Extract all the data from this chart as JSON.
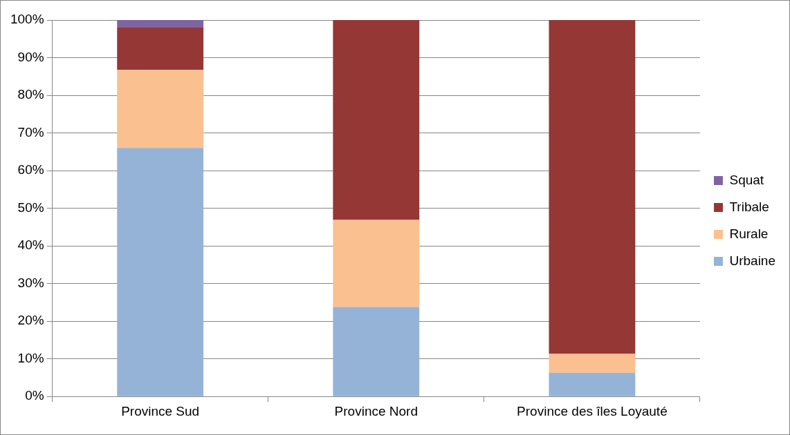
{
  "chart_data": {
    "type": "bar",
    "stacked": true,
    "categories": [
      "Province Sud",
      "Province Nord",
      "Province des îles Loyauté"
    ],
    "series": [
      {
        "name": "Urbaine",
        "color": "#95b3d7",
        "values": [
          66,
          23.8,
          6.3
        ]
      },
      {
        "name": "Rurale",
        "color": "#fac090",
        "values": [
          20.8,
          23.1,
          5
        ]
      },
      {
        "name": "Tribale",
        "color": "#953735",
        "values": [
          11.3,
          53.1,
          88.7
        ]
      },
      {
        "name": "Squat",
        "color": "#8064a2",
        "values": [
          1.9,
          0,
          0
        ]
      }
    ],
    "ylim": [
      0,
      100
    ],
    "yticks": [
      {
        "value": 0,
        "label": "0%"
      },
      {
        "value": 10,
        "label": "10%"
      },
      {
        "value": 20,
        "label": "20%"
      },
      {
        "value": 30,
        "label": "30%"
      },
      {
        "value": 40,
        "label": "40%"
      },
      {
        "value": 50,
        "label": "50%"
      },
      {
        "value": 60,
        "label": "60%"
      },
      {
        "value": 70,
        "label": "70%"
      },
      {
        "value": 80,
        "label": "80%"
      },
      {
        "value": 90,
        "label": "90%"
      },
      {
        "value": 100,
        "label": "100%"
      }
    ],
    "grid": "y",
    "legend": "right"
  }
}
